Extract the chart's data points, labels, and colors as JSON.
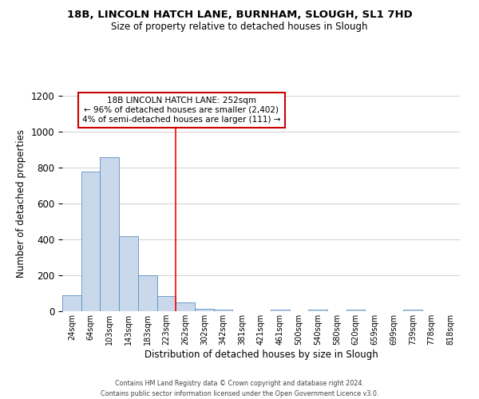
{
  "title": "18B, LINCOLN HATCH LANE, BURNHAM, SLOUGH, SL1 7HD",
  "subtitle": "Size of property relative to detached houses in Slough",
  "xlabel": "Distribution of detached houses by size in Slough",
  "ylabel": "Number of detached properties",
  "bar_labels": [
    "24sqm",
    "64sqm",
    "103sqm",
    "143sqm",
    "183sqm",
    "223sqm",
    "262sqm",
    "302sqm",
    "342sqm",
    "381sqm",
    "421sqm",
    "461sqm",
    "500sqm",
    "540sqm",
    "580sqm",
    "620sqm",
    "659sqm",
    "699sqm",
    "739sqm",
    "778sqm",
    "818sqm"
  ],
  "bar_values": [
    90,
    780,
    860,
    420,
    200,
    85,
    50,
    15,
    10,
    0,
    0,
    10,
    0,
    10,
    0,
    10,
    0,
    0,
    10,
    0,
    0
  ],
  "bar_color": "#c9d9eb",
  "bar_edge_color": "#5a8fc3",
  "vline_x": 6,
  "vline_color": "red",
  "ylim": [
    0,
    1200
  ],
  "yticks": [
    0,
    200,
    400,
    600,
    800,
    1000,
    1200
  ],
  "annotation_title": "18B LINCOLN HATCH LANE: 252sqm",
  "annotation_line1": "← 96% of detached houses are smaller (2,402)",
  "annotation_line2": "4% of semi-detached houses are larger (111) →",
  "annotation_box_color": "#ffffff",
  "annotation_box_edge_color": "#cc0000",
  "footer1": "Contains HM Land Registry data © Crown copyright and database right 2024.",
  "footer2": "Contains public sector information licensed under the Open Government Licence v3.0.",
  "bg_color": "#ffffff",
  "grid_color": "#d0d0d0"
}
